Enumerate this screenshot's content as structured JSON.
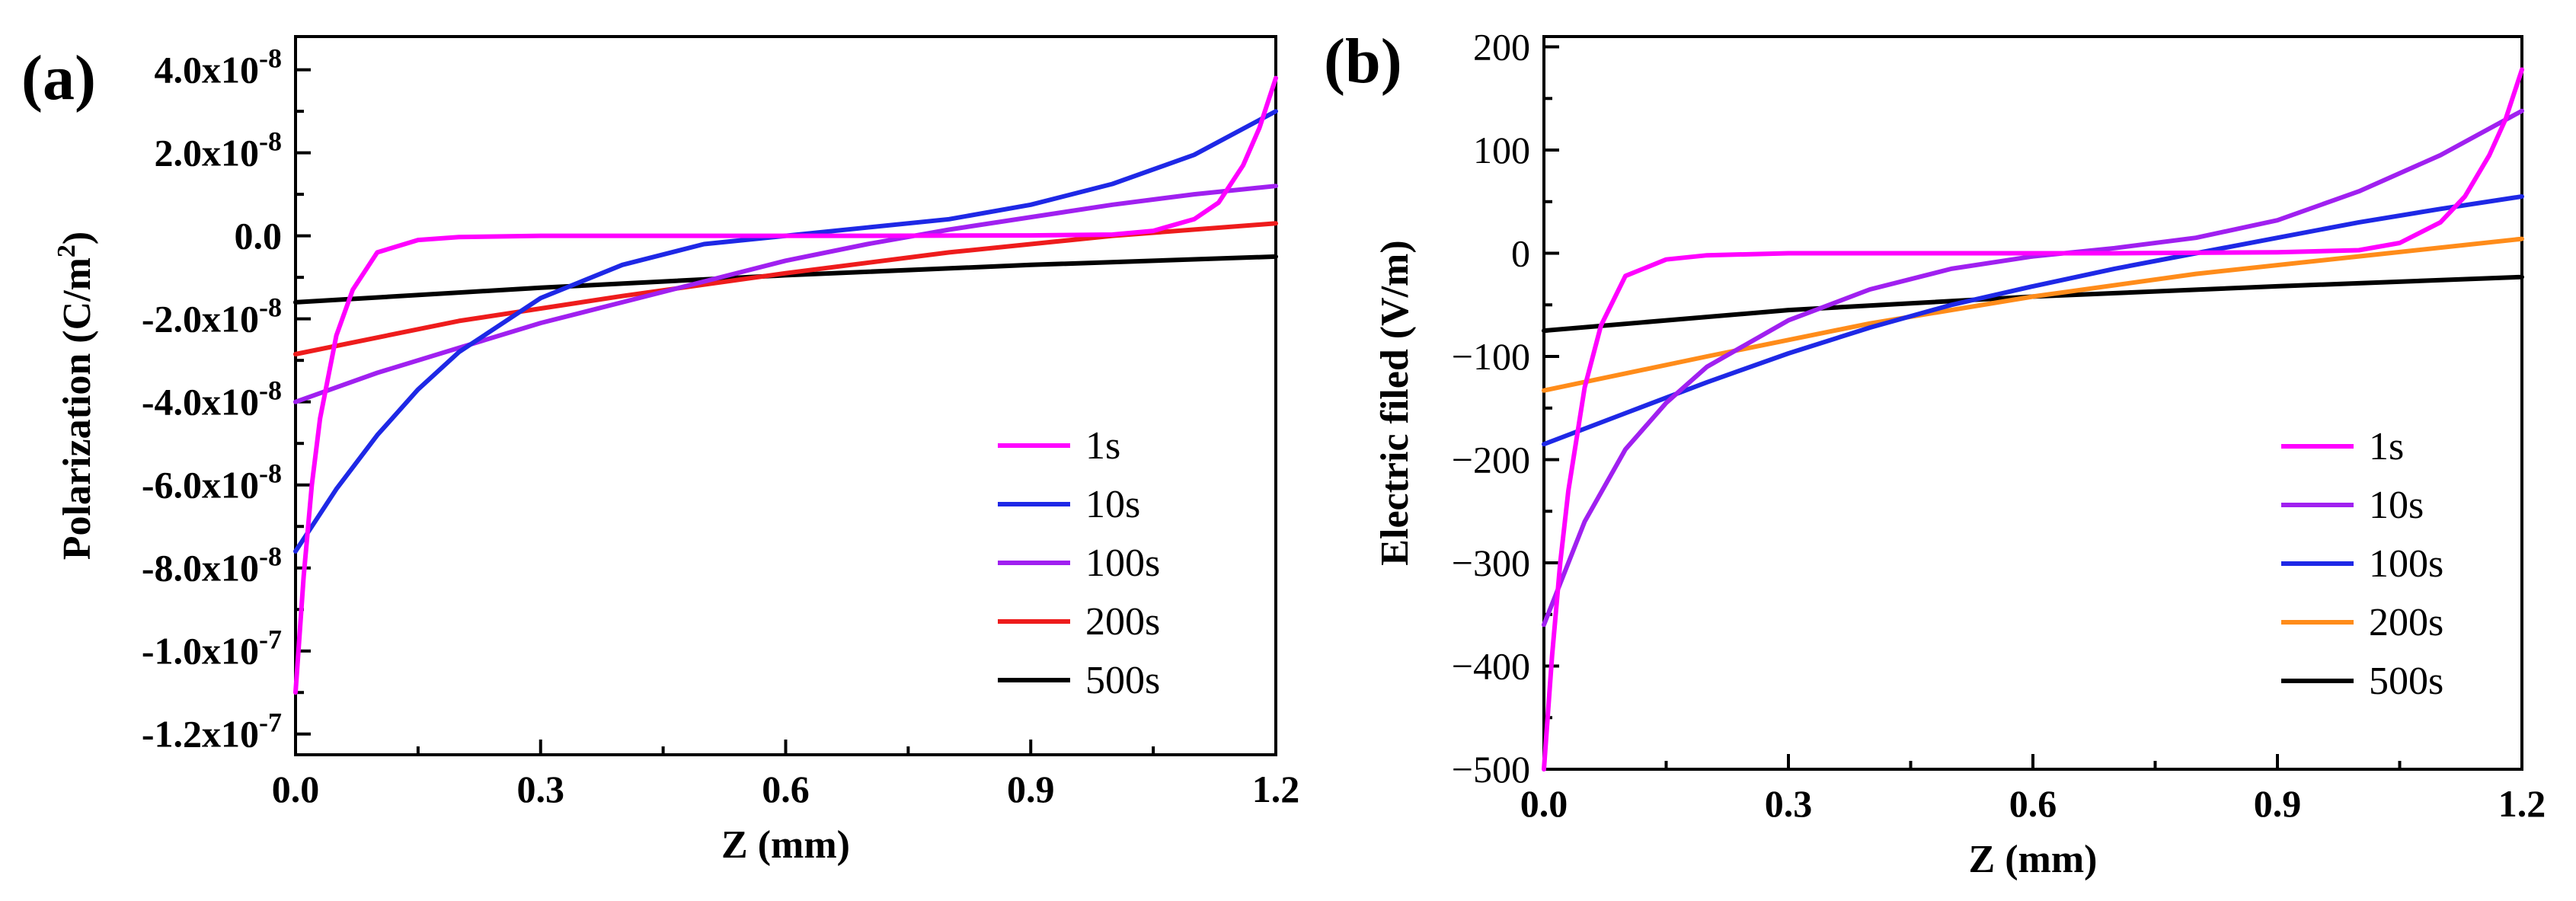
{
  "chart_data": [
    {
      "id": "a",
      "panel_label": "(a)",
      "type": "line",
      "xlabel": "Z (mm)",
      "ylabel": "Polarization (C/m",
      "ylabel_sup": "2",
      "ylabel_close": ")",
      "xlim": [
        0,
        1.2
      ],
      "ylim": [
        -1.25e-07,
        4.8e-08
      ],
      "xticks": [
        0,
        0.3,
        0.6,
        0.9,
        1.2
      ],
      "xtick_labels": [
        "0.0",
        "0.3",
        "0.6",
        "0.9",
        "1.2"
      ],
      "yticks": [
        4e-08,
        2e-08,
        0,
        -2e-08,
        -4e-08,
        -6e-08,
        -8e-08,
        -1e-07,
        -1.2e-07
      ],
      "ytick_labels": [
        {
          "mant": "4.0x10",
          "exp": "-8"
        },
        {
          "mant": "2.0x10",
          "exp": "-8"
        },
        {
          "mant": "0.0",
          "exp": ""
        },
        {
          "mant": "-2.0x10",
          "exp": "-8"
        },
        {
          "mant": "-4.0x10",
          "exp": "-8"
        },
        {
          "mant": "-6.0x10",
          "exp": "-8"
        },
        {
          "mant": "-8.0x10",
          "exp": "-8"
        },
        {
          "mant": "-1.0x10",
          "exp": "-7"
        },
        {
          "mant": "-1.2x10",
          "exp": "-7"
        }
      ],
      "legend_position": "lower-right",
      "series": [
        {
          "name": "1s",
          "color": "#ff00ff",
          "x": [
            0,
            0.01,
            0.02,
            0.03,
            0.05,
            0.07,
            0.1,
            0.15,
            0.2,
            0.3,
            0.5,
            0.7,
            0.9,
            1.0,
            1.05,
            1.1,
            1.13,
            1.16,
            1.18,
            1.2
          ],
          "y": [
            -1.1e-07,
            -8.2e-08,
            -6e-08,
            -4.4e-08,
            -2.4e-08,
            -1.3e-08,
            -4e-09,
            -1e-09,
            -3e-10,
            0,
            0,
            0,
            1e-10,
            3e-10,
            1.2e-09,
            4e-09,
            8e-09,
            1.7e-08,
            2.6e-08,
            3.8e-08
          ]
        },
        {
          "name": "10s",
          "color": "#1e28e6",
          "x": [
            0,
            0.05,
            0.1,
            0.15,
            0.2,
            0.3,
            0.4,
            0.5,
            0.6,
            0.7,
            0.8,
            0.9,
            1.0,
            1.1,
            1.2
          ],
          "y": [
            -7.6e-08,
            -6.1e-08,
            -4.8e-08,
            -3.7e-08,
            -2.8e-08,
            -1.5e-08,
            -7e-09,
            -2e-09,
            0,
            2e-09,
            4e-09,
            7.5e-09,
            1.25e-08,
            1.95e-08,
            3e-08
          ]
        },
        {
          "name": "100s",
          "color": "#a020f0",
          "x": [
            0,
            0.1,
            0.2,
            0.3,
            0.4,
            0.5,
            0.6,
            0.7,
            0.8,
            0.9,
            1.0,
            1.1,
            1.2
          ],
          "y": [
            -4e-08,
            -3.3e-08,
            -2.7e-08,
            -2.1e-08,
            -1.6e-08,
            -1.1e-08,
            -6e-09,
            -2e-09,
            1.5e-09,
            4.5e-09,
            7.5e-09,
            1e-08,
            1.2e-08
          ]
        },
        {
          "name": "200s",
          "color": "#ee1c1c",
          "x": [
            0,
            0.2,
            0.4,
            0.6,
            0.8,
            1.0,
            1.2
          ],
          "y": [
            -2.85e-08,
            -2.05e-08,
            -1.45e-08,
            -9e-09,
            -4e-09,
            0,
            3e-09
          ]
        },
        {
          "name": "500s",
          "color": "#000000",
          "x": [
            0,
            0.3,
            0.6,
            0.9,
            1.2
          ],
          "y": [
            -1.6e-08,
            -1.25e-08,
            -9.5e-09,
            -7e-09,
            -5e-09
          ]
        }
      ]
    },
    {
      "id": "b",
      "panel_label": "(b)",
      "type": "line",
      "xlabel": "Z (mm)",
      "ylabel": "Electric filed (V/m)",
      "xlim": [
        0,
        1.2
      ],
      "ylim": [
        -500,
        210
      ],
      "xticks": [
        0,
        0.3,
        0.6,
        0.9,
        1.2
      ],
      "xtick_labels": [
        "0.0",
        "0.3",
        "0.6",
        "0.9",
        "1.2"
      ],
      "yticks": [
        200,
        100,
        0,
        -100,
        -200,
        -300,
        -400,
        -500
      ],
      "ytick_labels": [
        "200",
        "100",
        "0",
        "−100",
        "−200",
        "−300",
        "−400",
        "−500"
      ],
      "legend_position": "lower-right",
      "series": [
        {
          "name": "1s",
          "color": "#ff00ff",
          "x": [
            0,
            0.01,
            0.02,
            0.03,
            0.05,
            0.07,
            0.1,
            0.15,
            0.2,
            0.3,
            0.5,
            0.7,
            0.9,
            1.0,
            1.05,
            1.1,
            1.13,
            1.16,
            1.18,
            1.2
          ],
          "y": [
            -500,
            -390,
            -300,
            -230,
            -130,
            -70,
            -22,
            -6,
            -2,
            0,
            0,
            0,
            1,
            3,
            10,
            30,
            55,
            95,
            130,
            178
          ]
        },
        {
          "name": "10s",
          "color": "#a020f0",
          "x": [
            0,
            0.05,
            0.1,
            0.15,
            0.2,
            0.3,
            0.4,
            0.5,
            0.6,
            0.7,
            0.8,
            0.9,
            1.0,
            1.1,
            1.2
          ],
          "y": [
            -360,
            -260,
            -190,
            -145,
            -110,
            -65,
            -35,
            -15,
            -3,
            5,
            15,
            32,
            60,
            95,
            138
          ]
        },
        {
          "name": "100s",
          "color": "#1e28e6",
          "x": [
            0,
            0.1,
            0.2,
            0.3,
            0.4,
            0.5,
            0.6,
            0.7,
            0.8,
            0.9,
            1.0,
            1.1,
            1.2
          ],
          "y": [
            -185,
            -155,
            -125,
            -97,
            -72,
            -50,
            -32,
            -15,
            0,
            15,
            30,
            43,
            55
          ]
        },
        {
          "name": "200s",
          "color": "#ff8c1a",
          "x": [
            0,
            0.2,
            0.4,
            0.6,
            0.8,
            1.0,
            1.2
          ],
          "y": [
            -133,
            -100,
            -68,
            -42,
            -20,
            -3,
            14
          ]
        },
        {
          "name": "500s",
          "color": "#000000",
          "x": [
            0,
            0.3,
            0.6,
            0.9,
            1.2
          ],
          "y": [
            -75,
            -55,
            -42,
            -32,
            -23
          ]
        }
      ]
    }
  ]
}
